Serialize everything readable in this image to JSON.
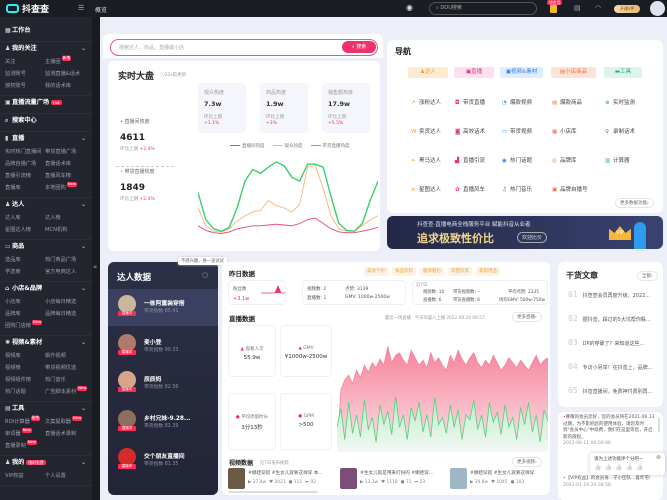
{
  "topbar": {
    "logo": "抖查查",
    "page": "概览",
    "search_placeholder": "DOU搜索",
    "gift_badge": "领会员",
    "vip_label": "开通VIP",
    "icons": [
      "eye-icon",
      "search-icon",
      "gift-icon",
      "print-icon",
      "headset-icon",
      "avatar"
    ]
  },
  "sidebar": {
    "collapse": "«",
    "sections": [
      {
        "title": "工作台",
        "icon": "▦",
        "items": []
      },
      {
        "title": "我的关注",
        "icon": "♟",
        "chevron": true,
        "items": [
          {
            "label": "关注"
          },
          {
            "label": "主播团",
            "badge": "新增"
          },
          {
            "label": "监测账号"
          },
          {
            "label": "监测直播&话术"
          },
          {
            "label": "授权账号"
          },
          {
            "label": "我的话术库"
          }
        ]
      },
      {
        "title": "直播流量广场",
        "icon": "▣",
        "badge": "Hot",
        "items": []
      },
      {
        "title": "搜索中心",
        "icon": "⌕",
        "items": []
      },
      {
        "title": "直播",
        "icon": "▮",
        "chevron": true,
        "items": [
          {
            "label": "实时热门直播间"
          },
          {
            "label": "带货直播广场"
          },
          {
            "label": "品牌自播广场"
          },
          {
            "label": "直播话术库"
          },
          {
            "label": "直播引流榜"
          },
          {
            "label": "直播风车榜"
          },
          {
            "label": "直播库"
          },
          {
            "label": "本地团购",
            "badge": "New"
          }
        ]
      },
      {
        "title": "达人",
        "icon": "♟",
        "chevron": true,
        "items": [
          {
            "label": "达人库"
          },
          {
            "label": "达人榜"
          },
          {
            "label": "星图达人榜"
          },
          {
            "label": "MCN机构"
          }
        ]
      },
      {
        "title": "商品",
        "icon": "▭",
        "chevron": true,
        "items": [
          {
            "label": "选品库"
          },
          {
            "label": "热门商品广场"
          },
          {
            "label": "学选商"
          },
          {
            "label": "官方电商达人"
          }
        ]
      },
      {
        "title": "小店&品牌",
        "icon": "⌂",
        "chevron": true,
        "items": [
          {
            "label": "小店库"
          },
          {
            "label": "小店每日精选"
          },
          {
            "label": "品牌库"
          },
          {
            "label": "品牌每日精选"
          },
          {
            "label": "团购门店榜",
            "badge": "New"
          }
        ]
      },
      {
        "title": "视频&素材",
        "icon": "✺",
        "chevron": true,
        "items": [
          {
            "label": "视频库"
          },
          {
            "label": "飙升视频"
          },
          {
            "label": "视频榜"
          },
          {
            "label": "带货视频优选"
          },
          {
            "label": "视频组件榜"
          },
          {
            "label": "热门音乐"
          },
          {
            "label": "热门话题"
          },
          {
            "label": "广告脚本素材",
            "badge": "New"
          }
        ]
      },
      {
        "title": "工具",
        "icon": "▤",
        "chevron": true,
        "items": [
          {
            "label": "ROI计算器",
            "badge": "限免"
          },
          {
            "label": "文案提取器",
            "badge": "New"
          },
          {
            "label": "审词器",
            "badge": "New"
          },
          {
            "label": "直播话术录制"
          },
          {
            "label": "直播录制",
            "badge": "New"
          }
        ]
      },
      {
        "title": "我的",
        "icon": "♟",
        "chevron": true,
        "badge": "限时免费",
        "items": [
          {
            "label": "VIP权益"
          },
          {
            "label": "个人设置"
          }
        ]
      }
    ]
  },
  "search": {
    "placeholder": "搜索达人、商品、直播或小店",
    "button": "搜索"
  },
  "realtime": {
    "title": "实时大盘",
    "updated": "22s前更新",
    "left": [
      {
        "label": "直播间热度",
        "value": "4611",
        "cmp": "环比上期",
        "delta": "+2.4%"
      },
      {
        "label": "带货直播热度",
        "value": "1849",
        "cmp": "环比上期",
        "delta": "+2.4%"
      }
    ],
    "stats": [
      {
        "label": "观众热度",
        "value": "7.3w",
        "cmp": "环比上期",
        "delta": "+1.1%"
      },
      {
        "label": "商品热度",
        "value": "1.9w",
        "cmp": "环比上期",
        "delta": "+3%"
      },
      {
        "label": "销售额热度",
        "value": "17.9w",
        "cmp": "环比上期",
        "delta": "+5.5%"
      }
    ]
  },
  "chart_data": [
    {
      "type": "line",
      "legend_position": "top",
      "grid": false,
      "series": [
        {
          "name": "直播间热度",
          "color": "#e8457a",
          "values": [
            12,
            6,
            3,
            2,
            4,
            8,
            10,
            12,
            12,
            13,
            14,
            13,
            12,
            15,
            20,
            22,
            15,
            8,
            4,
            3,
            3,
            5,
            7,
            10
          ]
        },
        {
          "name": "观众热度",
          "color": "#f8b37a",
          "values": [
            35,
            12,
            5,
            4,
            8,
            18,
            25,
            30,
            32,
            45,
            38,
            35,
            30,
            40,
            88,
            90,
            60,
            25,
            8,
            5,
            5,
            12,
            20,
            25
          ]
        },
        {
          "name": "带货直播热度",
          "color": "#3ccf6e",
          "values": [
            55,
            20,
            8,
            5,
            10,
            35,
            70,
            85,
            80,
            88,
            95,
            90,
            75,
            70,
            92,
            92,
            88,
            50,
            15,
            6,
            5,
            15,
            45,
            70
          ]
        }
      ]
    },
    {
      "type": "area",
      "grid": false,
      "series": [
        {
          "color": "#f5839b",
          "values": [
            0,
            50,
            58,
            62,
            55,
            66,
            60,
            70,
            64,
            72,
            68,
            75,
            70,
            85,
            72,
            78,
            80,
            74,
            70,
            82,
            76,
            70,
            74,
            68,
            80,
            72,
            76,
            70,
            66,
            78,
            72,
            82,
            75,
            70,
            76,
            80,
            72,
            68,
            74,
            70,
            78,
            72,
            66,
            70,
            76,
            72,
            68,
            74,
            70,
            66,
            72,
            78,
            70,
            74,
            76
          ]
        },
        {
          "color": "#4fd27a",
          "values": [
            20,
            35,
            10,
            40,
            15,
            30,
            12,
            42,
            18,
            28,
            8,
            38,
            22,
            33,
            14,
            45,
            20,
            30,
            10,
            36,
            25,
            40,
            16,
            30,
            12,
            44,
            22,
            28,
            15,
            38,
            20,
            34,
            10,
            30,
            26,
            42,
            18,
            30,
            12,
            40,
            24,
            32,
            14,
            38,
            20,
            28,
            10,
            36,
            22,
            40,
            16,
            30,
            8,
            34,
            25
          ]
        }
      ]
    }
  ],
  "nav": {
    "title": "导航",
    "tabs": [
      {
        "label": "达人",
        "icon": "♟",
        "bg": "#fdebd2",
        "fg": "#f0a030"
      },
      {
        "label": "直播",
        "icon": "▣",
        "bg": "#fde0ef",
        "fg": "#e8307a"
      },
      {
        "label": "视频&素材",
        "icon": "▣",
        "bg": "#dfeeff",
        "fg": "#2f7cf0"
      },
      {
        "label": "小店商品",
        "icon": "▤",
        "bg": "#fde4da",
        "fg": "#ee7046"
      },
      {
        "label": "工具",
        "icon": "▬",
        "bg": "#ddf4ec",
        "fg": "#22b07a"
      }
    ],
    "columns": [
      {
        "color": "#f0a030",
        "items": [
          {
            "label": "涨粉达人",
            "icon": "↗"
          },
          {
            "label": "卖货达人",
            "icon": "W"
          },
          {
            "label": "黑马达人",
            "icon": "≈"
          },
          {
            "label": "星图达人",
            "icon": "≋"
          }
        ]
      },
      {
        "color": "#e8307a",
        "items": [
          {
            "label": "带货直播",
            "icon": "◘"
          },
          {
            "label": "高效话术",
            "icon": "◙"
          },
          {
            "label": "直播引流",
            "icon": "▟"
          },
          {
            "label": "直播风车",
            "icon": "✿"
          }
        ]
      },
      {
        "color": "#2f7cf0",
        "items": [
          {
            "label": "爆款视频",
            "icon": "◔"
          },
          {
            "label": "带货视频",
            "icon": "▭"
          },
          {
            "label": "热门话题",
            "icon": "◉"
          },
          {
            "label": "热门音乐",
            "icon": "♫"
          }
        ]
      },
      {
        "color": "#ee7046",
        "items": [
          {
            "label": "爆款商品",
            "icon": "▤"
          },
          {
            "label": "小店库",
            "icon": "▦"
          },
          {
            "label": "品牌库",
            "icon": "◎"
          },
          {
            "label": "品牌自播号",
            "icon": "▣"
          }
        ]
      },
      {
        "color": "#22b07a",
        "items": [
          {
            "label": "实时监测",
            "icon": "⊕"
          },
          {
            "label": "录制话术",
            "icon": "♀"
          },
          {
            "label": "计算器",
            "icon": "▥"
          }
        ]
      }
    ],
    "more": "更多数据功能›"
  },
  "banner": {
    "line1": "抖查查·直播电商全栈服务平台  赋能抖音从业者",
    "line2": "追求极致性价比",
    "button": "欢迎比价",
    "crown": "VIP"
  },
  "kol": {
    "title": "达人数据",
    "tooltip": "不感兴趣，换一波试试",
    "live": "直播中",
    "items": [
      {
        "name": "一栋阿童装穿搭",
        "score": "带货指数 85.41"
      },
      {
        "name": "麦小登",
        "score": "带货指数 90.33"
      },
      {
        "name": "辰辰妈",
        "score": "带货指数 82.56"
      },
      {
        "name": "乡村兄妹-9.28...",
        "score": "带货指数 82.39"
      },
      {
        "name": "交个朋友直播间",
        "score": "带货指数 81.35"
      }
    ]
  },
  "yesterday": {
    "title": "昨日数据",
    "tags": [
      "美妆个护",
      "食品饮料",
      "服饰鞋包",
      "母婴玩具",
      "家居用品"
    ],
    "fans_label": "粉丝数",
    "fans_delta": "+3.1w",
    "box2": [
      "视频数: 2",
      "点赞: 3139",
      "直播数: 1",
      "GMV: 1000w-2500w"
    ],
    "box3_title": "近7日",
    "box3": [
      "视频数: 10",
      "带货视频数: --",
      "平均点赞: 2335",
      "直播数: 6",
      "带货直播数: 6",
      "场均GMV: 500w-750w"
    ]
  },
  "live": {
    "title": "直播数据",
    "latest": "最近一场直播 · 今天早晨八上播  2022.09.29 06:57",
    "more": "更多直播›",
    "stats": [
      {
        "label": "观看人次",
        "value": "55.9w"
      },
      {
        "label": "GMV",
        "value": "¥1000w-2500w"
      },
      {
        "label": "平均停留时长",
        "value": "3分13秒"
      },
      {
        "label": "GPM",
        "value": ">500"
      }
    ]
  },
  "videos": {
    "title": "视频数据",
    "sub": "近7日发布视频",
    "more": "更多视频›",
    "items": [
      {
        "title": "#娜娃穿搭 #生女儿就要这样穿 本...",
        "plays": "▶ 37.4w",
        "likes": "♥ 2021",
        "comments": "● 111",
        "shares": "➦ 92"
      },
      {
        "title": "#生女儿就是用来打扮的 #娜娃穿...",
        "plays": "▶ 13.3w",
        "likes": "♥ 1118",
        "comments": "● 71",
        "shares": "➦ 23"
      },
      {
        "title": "#娜娃穿搭 #生女儿就要这样穿",
        "plays": "▶ 34.8w",
        "likes": "♥ 1045",
        "comments": "● 103",
        "shares": ""
      }
    ]
  },
  "articles": {
    "title": "干货文章",
    "all": "全部›",
    "items": [
      {
        "no": "01",
        "text": "抖查查会员再度升级，2022..."
      },
      {
        "no": "02",
        "text": "据抖音，踩过的5大坑帮你躲..."
      },
      {
        "no": "03",
        "text": "DP的穿破了？来知道这些..."
      },
      {
        "no": "04",
        "text": "专访小另举！在抖音上，品牌..."
      },
      {
        "no": "05",
        "text": "抖音直播间，免费神付费别再..."
      }
    ]
  },
  "notices": [
    {
      "text": "尊敬的会员您好，您的会员将在2021.06.13过期，为不影响您的使用体验，请您及时到\"会员中心\"中续费，我们在这里等您，开启新的旅程。",
      "time": "2021-06-11 00:00:00"
    },
    {
      "text": "【VIP权益】的会员身...子小团队...喜咋宅!",
      "time": "2021-01-19 20:38:58"
    }
  ],
  "rating": {
    "prompt": "请为上述功能评个分吧~",
    "close": "⊗",
    "thumbs": "👍"
  }
}
